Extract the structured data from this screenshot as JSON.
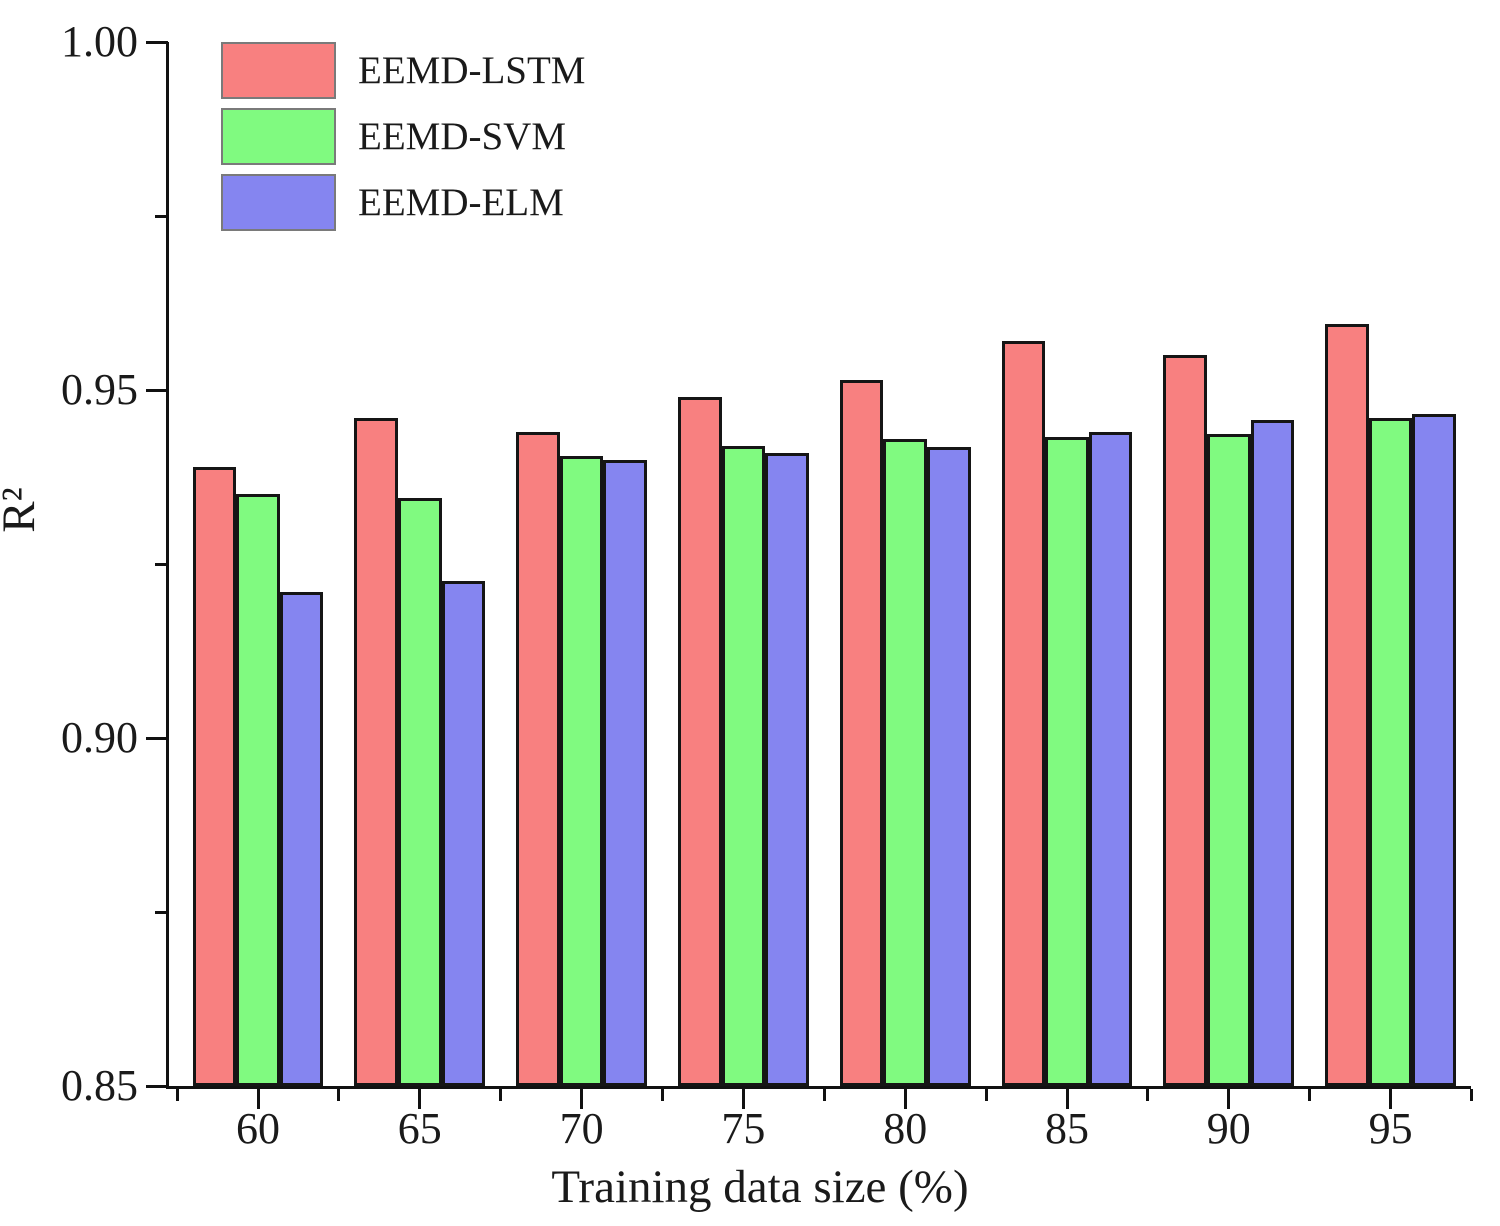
{
  "chart_data": {
    "type": "bar",
    "title": "",
    "xlabel": "Training data size (%)",
    "ylabel": "R²",
    "categories": [
      "60",
      "65",
      "70",
      "75",
      "80",
      "85",
      "90",
      "95"
    ],
    "series": [
      {
        "name": "EEMD-LSTM",
        "color": "#f88080",
        "values": [
          0.939,
          0.946,
          0.944,
          0.949,
          0.9515,
          0.957,
          0.955,
          0.9595
        ]
      },
      {
        "name": "EEMD-SVM",
        "color": "#80fa80",
        "values": [
          0.935,
          0.9345,
          0.9405,
          0.942,
          0.943,
          0.9433,
          0.9437,
          0.946
        ]
      },
      {
        "name": "EEMD-ELM",
        "color": "#8585f0",
        "values": [
          0.921,
          0.9225,
          0.94,
          0.941,
          0.9418,
          0.944,
          0.9457,
          0.9465
        ]
      }
    ],
    "ylim": [
      0.85,
      1.0
    ],
    "yticks_major": [
      1.0,
      0.95,
      0.9,
      0.85
    ],
    "ytick_labels": [
      "1.00",
      "0.95",
      "0.90",
      "0.85"
    ],
    "yticks_minor": [
      0.975,
      0.925,
      0.875
    ],
    "grid": false,
    "legend_position": "top-left",
    "bar_edge_color": "#151515",
    "axis_color": "#111111"
  }
}
